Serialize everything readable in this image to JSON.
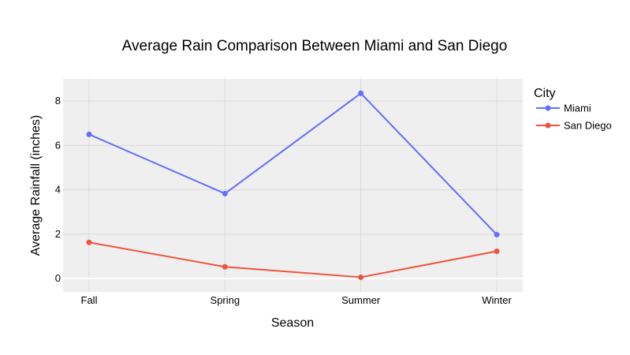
{
  "chart_data": {
    "type": "line",
    "title": "Average Rain Comparison Between Miami and San Diego",
    "xlabel": "Season",
    "ylabel": "Average Rainfall (inches)",
    "categories": [
      "Fall",
      "Spring",
      "Summer",
      "Winter"
    ],
    "ylim": [
      -0.6,
      9.0
    ],
    "yticks": [
      0,
      2,
      4,
      6,
      8
    ],
    "grid": true,
    "legend": {
      "title": "City",
      "placement": "right"
    },
    "series": [
      {
        "name": "Miami",
        "color": "#636efa",
        "values": [
          6.5,
          3.83,
          8.35,
          1.98
        ]
      },
      {
        "name": "San Diego",
        "color": "#ef553b",
        "values": [
          1.63,
          0.53,
          0.06,
          1.23
        ]
      }
    ],
    "plot_bgcolor": "#efefef",
    "grid_color": "#d9d9d9"
  }
}
